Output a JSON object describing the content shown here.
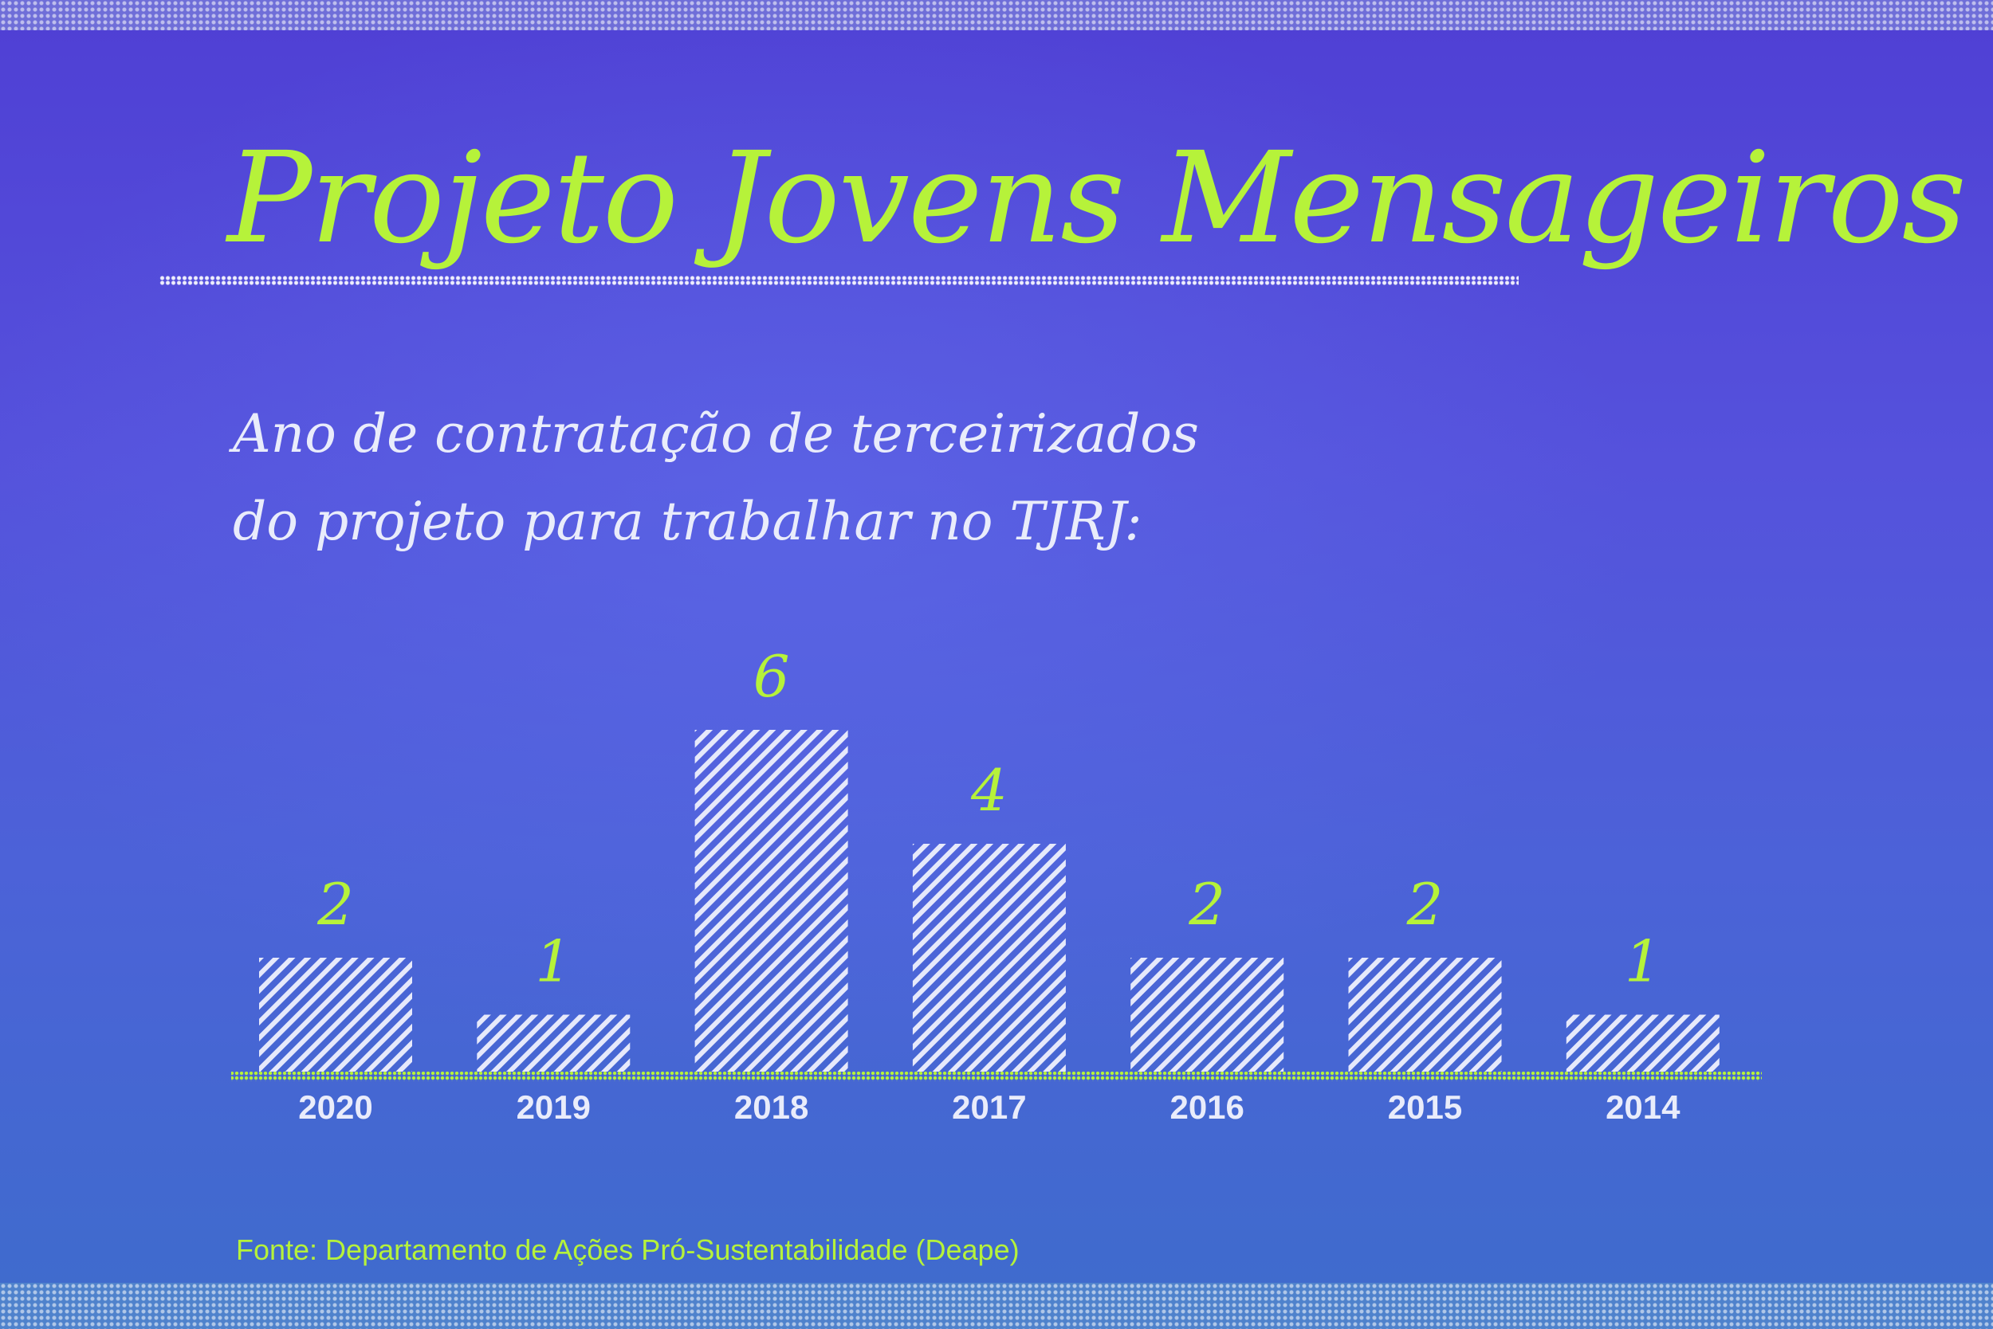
{
  "title": "Projeto Jovens Mensageiros",
  "subtitle_lines": [
    "Ano de contratação de terceirizados",
    "do projeto para trabalhar no TJRJ:"
  ],
  "source": "Fonte: Departamento de Ações Pró-Sustentabilidade (Deape)",
  "colors": {
    "accent": "#b6f23a",
    "bar_hatch": "#e6e9fb",
    "axis_labels": "#e9ecfb"
  },
  "chart_data": {
    "type": "bar",
    "categories": [
      "2020",
      "2019",
      "2018",
      "2017",
      "2016",
      "2015",
      "2014"
    ],
    "values": [
      2,
      1,
      6,
      4,
      2,
      2,
      1
    ],
    "ylim": [
      0,
      6
    ],
    "grid": false,
    "data_labels": true,
    "bar_fill": "diagonal-hatch"
  }
}
